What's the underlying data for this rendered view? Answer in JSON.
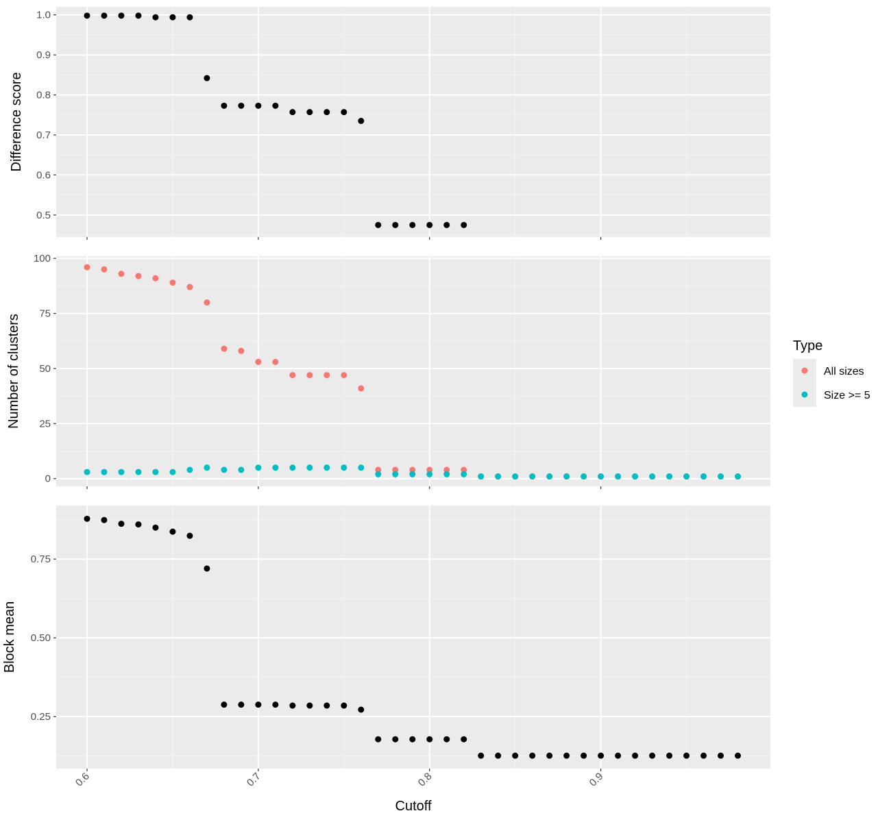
{
  "chart_data": [
    {
      "type": "scatter",
      "panel": "top",
      "ylabel": "Difference score",
      "ylim": [
        0.445,
        1.02
      ],
      "yticks": [
        "0.5",
        "0.6",
        "0.7",
        "0.8",
        "0.9",
        "1.0"
      ],
      "ytick_values": [
        0.5,
        0.6,
        0.7,
        0.8,
        0.9,
        1.0
      ],
      "grid": true,
      "series": [
        {
          "color": "#000000",
          "x": [
            0.6,
            0.61,
            0.62,
            0.63,
            0.64,
            0.65,
            0.66,
            0.67,
            0.68,
            0.69,
            0.7,
            0.71,
            0.72,
            0.73,
            0.74,
            0.75,
            0.76,
            0.77,
            0.78,
            0.79,
            0.8,
            0.81,
            0.82
          ],
          "y": [
            0.998,
            0.998,
            0.998,
            0.998,
            0.994,
            0.994,
            0.994,
            0.842,
            0.773,
            0.773,
            0.773,
            0.773,
            0.757,
            0.757,
            0.757,
            0.757,
            0.735,
            0.475,
            0.475,
            0.475,
            0.475,
            0.475,
            0.475
          ]
        }
      ]
    },
    {
      "type": "scatter",
      "panel": "middle",
      "ylabel": "Number of clusters",
      "ylim": [
        -3.5,
        101
      ],
      "yticks": [
        "0",
        "25",
        "50",
        "75",
        "100"
      ],
      "ytick_values": [
        0,
        25,
        50,
        75,
        100
      ],
      "grid": true,
      "legend": {
        "title": "Type",
        "position": "right",
        "entries": [
          "All sizes",
          "Size >= 5"
        ]
      },
      "series": [
        {
          "name": "All sizes",
          "color": "#F8766D",
          "x": [
            0.6,
            0.61,
            0.62,
            0.63,
            0.64,
            0.65,
            0.66,
            0.67,
            0.68,
            0.69,
            0.7,
            0.71,
            0.72,
            0.73,
            0.74,
            0.75,
            0.76,
            0.77,
            0.78,
            0.79,
            0.8,
            0.81,
            0.82,
            0.83,
            0.84,
            0.85,
            0.86,
            0.87,
            0.88,
            0.89,
            0.9,
            0.91,
            0.92,
            0.93,
            0.94,
            0.95,
            0.96,
            0.97,
            0.98
          ],
          "y": [
            96,
            95,
            93,
            92,
            91,
            89,
            87,
            80,
            59,
            58,
            53,
            53,
            47,
            47,
            47,
            47,
            41,
            4,
            4,
            4,
            4,
            4,
            4,
            1,
            1,
            1,
            1,
            1,
            1,
            1,
            1,
            1,
            1,
            1,
            1,
            1,
            1,
            1,
            1
          ]
        },
        {
          "name": "Size >= 5",
          "color": "#00BFC4",
          "x": [
            0.6,
            0.61,
            0.62,
            0.63,
            0.64,
            0.65,
            0.66,
            0.67,
            0.68,
            0.69,
            0.7,
            0.71,
            0.72,
            0.73,
            0.74,
            0.75,
            0.76,
            0.77,
            0.78,
            0.79,
            0.8,
            0.81,
            0.82,
            0.83,
            0.84,
            0.85,
            0.86,
            0.87,
            0.88,
            0.89,
            0.9,
            0.91,
            0.92,
            0.93,
            0.94,
            0.95,
            0.96,
            0.97,
            0.98
          ],
          "y": [
            3,
            3,
            3,
            3,
            3,
            3,
            4,
            5,
            4,
            4,
            5,
            5,
            5,
            5,
            5,
            5,
            5,
            2,
            2,
            2,
            2,
            2,
            2,
            1,
            1,
            1,
            1,
            1,
            1,
            1,
            1,
            1,
            1,
            1,
            1,
            1,
            1,
            1,
            1
          ]
        }
      ]
    },
    {
      "type": "scatter",
      "panel": "bottom",
      "ylabel": "Block mean",
      "xlabel": "Cutoff",
      "ylim": [
        0.085,
        0.92
      ],
      "yticks": [
        "0.25",
        "0.50",
        "0.75"
      ],
      "ytick_values": [
        0.25,
        0.5,
        0.75
      ],
      "grid": true,
      "series": [
        {
          "color": "#000000",
          "x": [
            0.6,
            0.61,
            0.62,
            0.63,
            0.64,
            0.65,
            0.66,
            0.67,
            0.68,
            0.69,
            0.7,
            0.71,
            0.72,
            0.73,
            0.74,
            0.75,
            0.76,
            0.77,
            0.78,
            0.79,
            0.8,
            0.81,
            0.82,
            0.83,
            0.84,
            0.85,
            0.86,
            0.87,
            0.88,
            0.89,
            0.9,
            0.91,
            0.92,
            0.93,
            0.94,
            0.95,
            0.96,
            0.97,
            0.98
          ],
          "y": [
            0.878,
            0.874,
            0.862,
            0.86,
            0.85,
            0.837,
            0.824,
            0.72,
            0.288,
            0.288,
            0.288,
            0.288,
            0.285,
            0.285,
            0.285,
            0.285,
            0.272,
            0.178,
            0.178,
            0.178,
            0.178,
            0.178,
            0.178,
            0.126,
            0.126,
            0.126,
            0.126,
            0.126,
            0.126,
            0.126,
            0.126,
            0.126,
            0.126,
            0.126,
            0.126,
            0.126,
            0.126,
            0.126,
            0.126
          ]
        }
      ]
    }
  ],
  "x_axis": {
    "xlim": [
      0.582,
      0.999
    ],
    "ticks": [
      "0.6",
      "0.7",
      "0.8",
      "0.9"
    ],
    "tick_values": [
      0.6,
      0.7,
      0.8,
      0.9
    ],
    "tick_label_rotation_deg": -45
  },
  "colors": {
    "panel_background": "#EBEBEB",
    "grid_major": "#FFFFFF",
    "grid_minor": "#F5F5F5",
    "tick_label": "#4D4D4D"
  }
}
